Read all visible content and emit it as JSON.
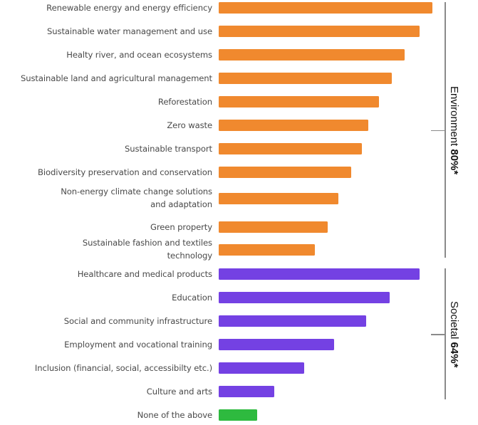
{
  "chart_data": {
    "type": "bar",
    "orientation": "horizontal",
    "title": "",
    "xlabel": "",
    "ylabel": "",
    "value_scale": "relative (longest bar = 100); no axis or value labels shown",
    "xlim": [
      0,
      100
    ],
    "grid": false,
    "legend": "none",
    "categories": [
      "Renewable energy and energy efficiency",
      "Sustainable water management and use",
      "Healty river, and ocean ecosystems",
      "Sustainable land and agricultural management",
      "Reforestation",
      "Zero waste",
      "Sustainable transport",
      "Biodiversity preservation and conservation",
      "Non-energy climate change solutions and adaptation",
      "Green property",
      "Sustainable fashion and textiles technology",
      "Healthcare and medical products",
      "Education",
      "Social and community infrastructure",
      "Employment and vocational training",
      "Inclusion (financial, social, accessibilty etc.)",
      "Culture and arts",
      "None of the above"
    ],
    "label_lines": [
      [
        "Renewable energy and energy efficiency"
      ],
      [
        "Sustainable water management and use"
      ],
      [
        "Healty river, and ocean ecosystems"
      ],
      [
        "Sustainable land and agricultural management"
      ],
      [
        "Reforestation"
      ],
      [
        "Zero waste"
      ],
      [
        "Sustainable transport"
      ],
      [
        "Biodiversity preservation and conservation"
      ],
      [
        "Non-energy climate change solutions",
        "and adaptation"
      ],
      [
        "Green property"
      ],
      [
        "Sustainable fashion and textiles",
        "technology"
      ],
      [
        "Healthcare and medical products"
      ],
      [
        "Education"
      ],
      [
        "Social and community infrastructure"
      ],
      [
        "Employment and vocational training"
      ],
      [
        "Inclusion (financial, social, accessibilty etc.)"
      ],
      [
        "Culture and arts"
      ],
      [
        "None of the above"
      ]
    ],
    "values": [
      100,
      94,
      87,
      81,
      75,
      70,
      67,
      62,
      56,
      51,
      45,
      94,
      80,
      69,
      54,
      40,
      26,
      18
    ],
    "groups": [
      "Environment",
      "Environment",
      "Environment",
      "Environment",
      "Environment",
      "Environment",
      "Environment",
      "Environment",
      "Environment",
      "Environment",
      "Environment",
      "Societal",
      "Societal",
      "Societal",
      "Societal",
      "Societal",
      "Societal",
      "None"
    ],
    "group_colors": {
      "Environment": "#f0892e",
      "Societal": "#7441e3",
      "None": "#2eba3f"
    },
    "annotations": [
      {
        "group": "Environment",
        "label": "Environment",
        "value_text": "80%*",
        "first_index": 0,
        "last_index": 10
      },
      {
        "group": "Societal",
        "label": "Societal",
        "value_text": "64%*",
        "first_index": 11,
        "last_index": 16
      }
    ]
  }
}
